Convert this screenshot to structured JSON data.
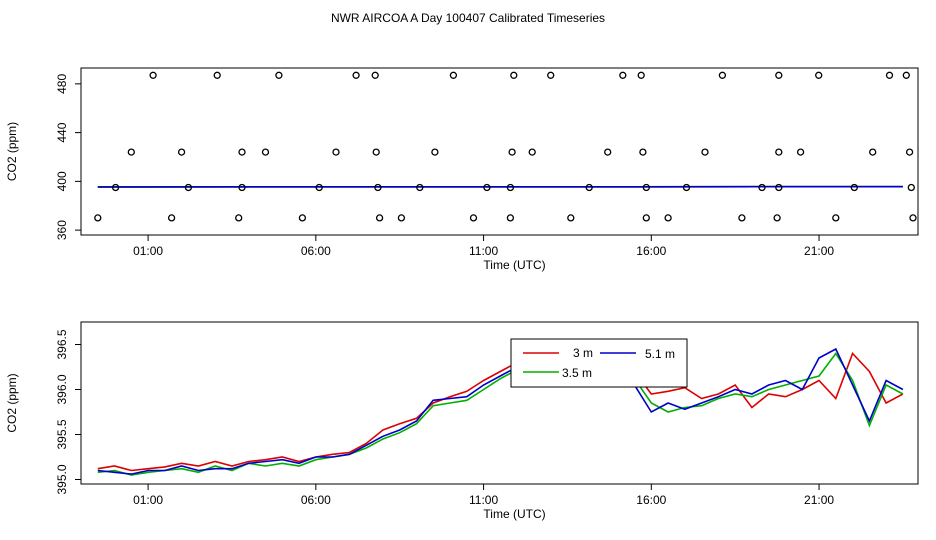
{
  "title": "NWR AIRCOA A  Day 100407  Calibrated Timeseries",
  "colors": {
    "red": "#dd0000",
    "green": "#00b000",
    "blue": "#0000cc",
    "axis": "#000000"
  },
  "chart_data": [
    {
      "type": "line",
      "panel": "top",
      "xlabel": "Time (UTC)",
      "ylabel": "CO2 (ppm)",
      "x_unit": "hours (UTC)",
      "xlim": [
        -1.0,
        23.95
      ],
      "ylim": [
        356,
        493
      ],
      "x_ticks": [
        1,
        6,
        11,
        16,
        21
      ],
      "x_tick_labels": [
        "01:00",
        "06:00",
        "11:00",
        "16:00",
        "21:00"
      ],
      "y_ticks": [
        360,
        400,
        440,
        480
      ],
      "y_tick_labels": [
        "360",
        "400",
        "440",
        "480"
      ],
      "grid": false,
      "series": [
        {
          "color": "red",
          "x": [
            -0.5,
            23.5
          ],
          "y": [
            395.5,
            395.6
          ]
        },
        {
          "color": "green",
          "x": [
            -0.5,
            23.5
          ],
          "y": [
            395.5,
            395.6
          ]
        },
        {
          "color": "blue",
          "x": [
            -0.5,
            23.5
          ],
          "y": [
            395.5,
            395.6
          ]
        }
      ],
      "flag_points": {
        "marker": "open-circle",
        "x": [
          1.15,
          3.06,
          4.9,
          7.2,
          7.77,
          10.1,
          11.9,
          13.0,
          15.15,
          15.7,
          18.12,
          19.8,
          20.99,
          23.1,
          23.6,
          0.5,
          2.0,
          3.8,
          4.5,
          6.6,
          7.8,
          9.55,
          11.85,
          12.45,
          14.7,
          15.75,
          17.6,
          19.8,
          20.45,
          22.6,
          23.7,
          0.03,
          2.2,
          3.8,
          6.1,
          7.85,
          9.1,
          11.1,
          11.8,
          14.15,
          15.85,
          17.05,
          19.3,
          19.8,
          22.05,
          23.75,
          -0.5,
          1.7,
          3.7,
          5.6,
          7.9,
          8.55,
          10.7,
          11.8,
          13.6,
          15.85,
          16.5,
          18.7,
          19.75,
          21.5,
          23.8
        ],
        "y": [
          487,
          487,
          487,
          487,
          487,
          487,
          487,
          487,
          487,
          487,
          487,
          487,
          487,
          487,
          487,
          424,
          424,
          424,
          424,
          424,
          424,
          424,
          424,
          424,
          424,
          424,
          424,
          424,
          424,
          424,
          424,
          395,
          395,
          395,
          395,
          395,
          395,
          395,
          395,
          395,
          395,
          395,
          395,
          395,
          395,
          395,
          370,
          370,
          370,
          370,
          370,
          370,
          370,
          370,
          370,
          370,
          370,
          370,
          370,
          370,
          370
        ]
      }
    },
    {
      "type": "line",
      "panel": "bottom",
      "xlabel": "Time (UTC)",
      "ylabel": "CO2 (ppm)",
      "x_unit": "hours (UTC)",
      "xlim": [
        -1.0,
        23.95
      ],
      "ylim": [
        394.95,
        396.75
      ],
      "x_ticks": [
        1,
        6,
        11,
        16,
        21
      ],
      "x_tick_labels": [
        "01:00",
        "06:00",
        "11:00",
        "16:00",
        "21:00"
      ],
      "y_ticks": [
        395.0,
        395.5,
        396.0,
        396.5
      ],
      "y_tick_labels": [
        "395.0",
        "395.5",
        "396.0",
        "396.5"
      ],
      "grid": false,
      "legend": {
        "position": "top-center",
        "entries": [
          {
            "label": "3 m",
            "color": "red"
          },
          {
            "label": "3.5 m",
            "color": "green"
          },
          {
            "label": "5.1 m",
            "color": "blue"
          }
        ]
      },
      "x": [
        -0.5,
        0.0,
        0.5,
        1.0,
        1.5,
        2.0,
        2.5,
        3.0,
        3.5,
        4.0,
        4.5,
        5.0,
        5.5,
        6.0,
        6.5,
        7.0,
        7.5,
        8.0,
        8.5,
        9.0,
        9.5,
        10.0,
        10.5,
        11.0,
        11.5,
        12.0,
        12.5,
        13.0,
        13.5,
        14.0,
        14.5,
        15.0,
        15.5,
        16.0,
        16.5,
        17.0,
        17.5,
        18.0,
        18.5,
        19.0,
        19.5,
        20.0,
        20.5,
        21.0,
        21.5,
        22.0,
        22.5,
        23.0,
        23.5
      ],
      "series": [
        {
          "name": "3 m",
          "color": "red",
          "y": [
            395.12,
            395.15,
            395.1,
            395.12,
            395.14,
            395.18,
            395.15,
            395.2,
            395.15,
            395.2,
            395.22,
            395.25,
            395.2,
            395.25,
            395.28,
            395.3,
            395.4,
            395.55,
            395.62,
            395.68,
            395.85,
            395.92,
            395.98,
            396.1,
            396.2,
            396.3,
            396.25,
            396.2,
            396.15,
            396.3,
            396.25,
            396.35,
            396.2,
            395.95,
            395.98,
            396.02,
            395.9,
            395.95,
            396.05,
            395.8,
            395.95,
            395.92,
            396.0,
            396.1,
            395.9,
            396.4,
            396.2,
            395.85,
            395.95
          ]
        },
        {
          "name": "3.5 m",
          "color": "green",
          "y": [
            395.08,
            395.1,
            395.05,
            395.08,
            395.1,
            395.12,
            395.08,
            395.15,
            395.1,
            395.18,
            395.15,
            395.18,
            395.15,
            395.22,
            395.25,
            395.28,
            395.35,
            395.45,
            395.52,
            395.62,
            395.82,
            395.85,
            395.88,
            396.0,
            396.12,
            396.22,
            396.2,
            396.15,
            396.05,
            396.25,
            396.2,
            396.3,
            396.12,
            395.85,
            395.75,
            395.8,
            395.82,
            395.9,
            395.95,
            395.92,
            396.0,
            396.05,
            396.1,
            396.15,
            396.4,
            396.1,
            395.6,
            396.05,
            395.95
          ]
        },
        {
          "name": "5.1 m",
          "color": "blue",
          "y": [
            395.1,
            395.08,
            395.06,
            395.1,
            395.1,
            395.15,
            395.1,
            395.12,
            395.12,
            395.18,
            395.2,
            395.22,
            395.18,
            395.25,
            395.25,
            395.28,
            395.38,
            395.48,
            395.55,
            395.65,
            395.88,
            395.9,
            395.92,
            396.05,
            396.15,
            396.25,
            396.22,
            396.3,
            396.4,
            396.3,
            396.25,
            396.3,
            396.05,
            395.75,
            395.85,
            395.78,
            395.85,
            395.92,
            396.0,
            395.95,
            396.05,
            396.1,
            396.0,
            396.35,
            396.45,
            396.05,
            395.65,
            396.1,
            396.0
          ]
        }
      ]
    }
  ]
}
